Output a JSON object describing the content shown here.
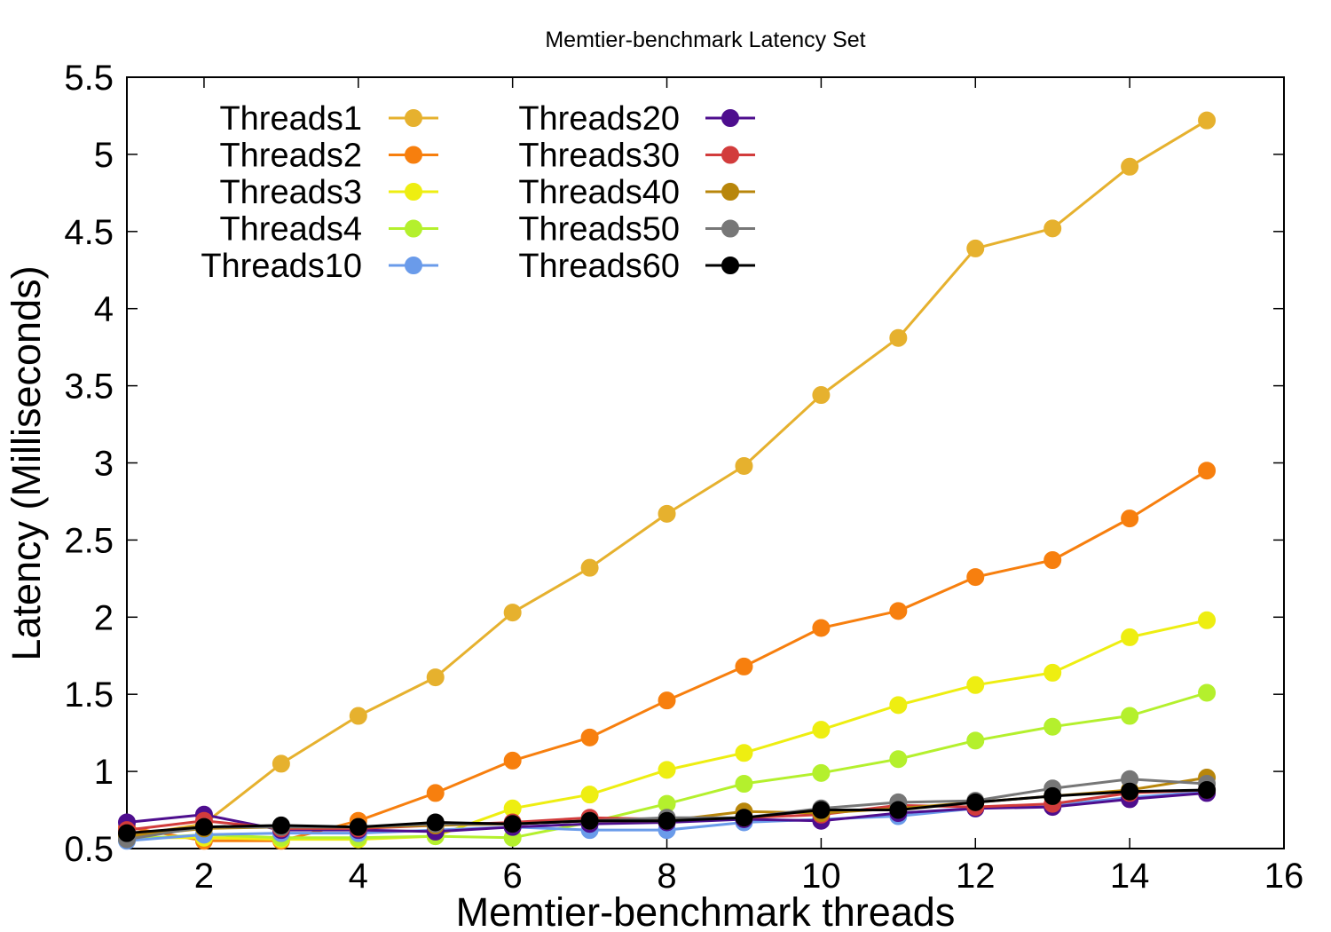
{
  "chart_data": {
    "type": "line",
    "title": "Memtier-benchmark Latency Set",
    "xlabel": "Memtier-benchmark threads",
    "ylabel": "Latency (Milliseconds)",
    "xlim": [
      1,
      16
    ],
    "ylim": [
      0.5,
      5.5
    ],
    "xticks": [
      2,
      4,
      6,
      8,
      10,
      12,
      14,
      16
    ],
    "yticks": [
      0.5,
      1,
      1.5,
      2,
      2.5,
      3,
      3.5,
      4,
      4.5,
      5,
      5.5
    ],
    "xtick_labels": [
      "2",
      "4",
      "6",
      "8",
      "10",
      "12",
      "14",
      "16"
    ],
    "ytick_labels": [
      "0.5",
      "1",
      "1.5",
      "2",
      "2.5",
      "3",
      "3.5",
      "4",
      "4.5",
      "5",
      "5.5"
    ],
    "grid": false,
    "legend_position": "top-left",
    "x": [
      1,
      2,
      3,
      4,
      5,
      6,
      7,
      8,
      9,
      10,
      11,
      12,
      13,
      14,
      15
    ],
    "series": [
      {
        "name": "Threads1",
        "color": "#E6B12E",
        "values": [
          0.58,
          0.66,
          1.05,
          1.36,
          1.61,
          2.03,
          2.32,
          2.67,
          2.98,
          3.44,
          3.81,
          4.39,
          4.52,
          4.92,
          5.22
        ]
      },
      {
        "name": "Threads2",
        "color": "#F77F0E",
        "values": [
          0.64,
          0.55,
          0.55,
          0.68,
          0.86,
          1.07,
          1.22,
          1.46,
          1.68,
          1.93,
          2.04,
          2.26,
          2.37,
          2.64,
          2.95
        ]
      },
      {
        "name": "Threads3",
        "color": "#EEEE11",
        "values": [
          0.57,
          0.57,
          0.56,
          0.56,
          0.58,
          0.76,
          0.85,
          1.01,
          1.12,
          1.27,
          1.43,
          1.56,
          1.64,
          1.87,
          1.98
        ]
      },
      {
        "name": "Threads4",
        "color": "#B4F02D",
        "values": [
          0.56,
          0.59,
          0.57,
          0.57,
          0.58,
          0.57,
          0.67,
          0.79,
          0.92,
          0.99,
          1.08,
          1.2,
          1.29,
          1.36,
          1.51
        ]
      },
      {
        "name": "Threads10",
        "color": "#6A9BEA",
        "values": [
          0.55,
          0.59,
          0.6,
          0.6,
          0.62,
          0.64,
          0.62,
          0.62,
          0.67,
          0.69,
          0.71,
          0.76,
          0.78,
          0.83,
          0.87
        ]
      },
      {
        "name": "Threads20",
        "color": "#4E0E8E",
        "values": [
          0.67,
          0.72,
          0.62,
          0.62,
          0.61,
          0.64,
          0.66,
          0.67,
          0.69,
          0.68,
          0.73,
          0.76,
          0.77,
          0.82,
          0.86
        ]
      },
      {
        "name": "Threads30",
        "color": "#D23C3C",
        "values": [
          0.62,
          0.68,
          0.63,
          0.63,
          0.65,
          0.67,
          0.7,
          0.69,
          0.7,
          0.72,
          0.78,
          0.77,
          0.79,
          0.86,
          0.88
        ]
      },
      {
        "name": "Threads40",
        "color": "#B8860B",
        "values": [
          0.58,
          0.63,
          0.64,
          0.64,
          0.65,
          0.66,
          0.68,
          0.68,
          0.74,
          0.73,
          0.76,
          0.8,
          0.84,
          0.88,
          0.96
        ]
      },
      {
        "name": "Threads50",
        "color": "#777777",
        "values": [
          0.56,
          0.64,
          0.64,
          0.64,
          0.66,
          0.66,
          0.68,
          0.7,
          0.7,
          0.76,
          0.8,
          0.81,
          0.89,
          0.95,
          0.92
        ]
      },
      {
        "name": "Threads60",
        "color": "#000000",
        "values": [
          0.6,
          0.64,
          0.65,
          0.64,
          0.67,
          0.66,
          0.68,
          0.68,
          0.7,
          0.75,
          0.75,
          0.8,
          0.84,
          0.87,
          0.88
        ]
      }
    ]
  }
}
